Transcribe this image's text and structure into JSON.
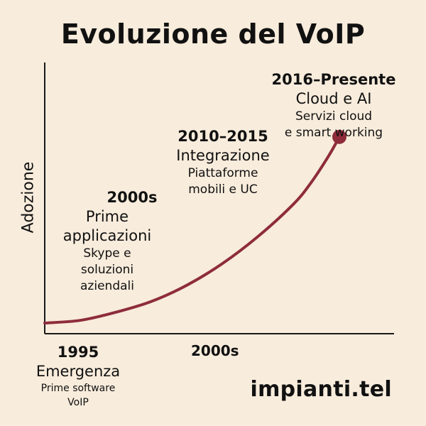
{
  "title": "Evoluzione del VoIP",
  "brand": "impianti.tel",
  "chart_data": {
    "type": "line",
    "title": "Evoluzione del VoIP",
    "ylabel": "Adozione",
    "xlabel": "",
    "x_ticks": [
      "1995",
      "2000s"
    ],
    "grid": false,
    "legend": "none",
    "series_color": "#8e2c3c",
    "curve": [
      {
        "x": 0.0,
        "y": 0.0
      },
      {
        "x": 0.1,
        "y": 0.01
      },
      {
        "x": 0.2,
        "y": 0.04
      },
      {
        "x": 0.3,
        "y": 0.08
      },
      {
        "x": 0.4,
        "y": 0.14
      },
      {
        "x": 0.5,
        "y": 0.22
      },
      {
        "x": 0.6,
        "y": 0.32
      },
      {
        "x": 0.7,
        "y": 0.44
      },
      {
        "x": 0.75,
        "y": 0.52
      },
      {
        "x": 0.8,
        "y": 0.62
      },
      {
        "x": 0.83,
        "y": 0.69
      }
    ],
    "endpoint": {
      "x": 0.83,
      "y": 0.69
    },
    "milestones": [
      {
        "year": "1995",
        "phase": "Emergenza",
        "desc": [
          "Prime software",
          "VoIP"
        ]
      },
      {
        "year": "2000s",
        "phase": [
          "Prime",
          "applicazioni"
        ],
        "desc": [
          "Skype e",
          "soluzioni",
          "aziendali"
        ]
      },
      {
        "year": "2010–2015",
        "phase": "Integrazione",
        "desc": [
          "Piattaforme",
          "mobili e UC"
        ]
      },
      {
        "year": "2016–Presente",
        "phase": "Cloud e AI",
        "desc": [
          "Servizi cloud",
          "e smart working"
        ]
      }
    ]
  }
}
